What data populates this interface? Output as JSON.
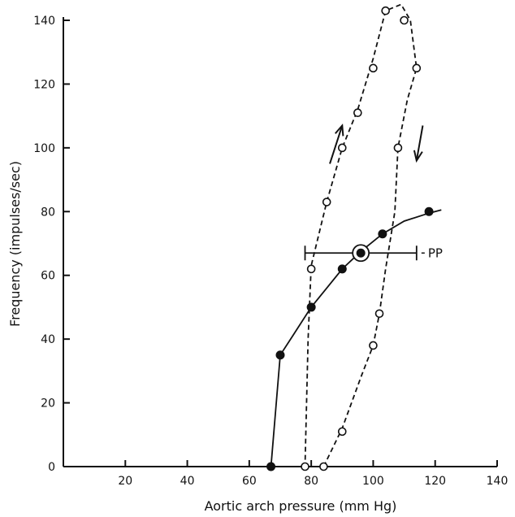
{
  "chart_data": {
    "type": "scatter",
    "title": "",
    "xlabel": "Aortic arch pressure (mm Hg)",
    "ylabel": "Frequency (impulses/sec)",
    "xlim": [
      0,
      140
    ],
    "ylim": [
      0,
      140
    ],
    "x_ticks": [
      20,
      40,
      60,
      80,
      100,
      120,
      140
    ],
    "y_ticks": [
      0,
      20,
      40,
      60,
      80,
      100,
      120,
      140
    ],
    "grid": false,
    "series": [
      {
        "marker": "filled-circle",
        "line": "solid",
        "points": [
          [
            67,
            0
          ],
          [
            70,
            35
          ],
          [
            80,
            50
          ],
          [
            90,
            62
          ],
          [
            103,
            73
          ],
          [
            118,
            80
          ]
        ],
        "line_path": [
          [
            67,
            0
          ],
          [
            70,
            35
          ],
          [
            74,
            41
          ],
          [
            80,
            50
          ],
          [
            85,
            56
          ],
          [
            90,
            62
          ],
          [
            96,
            67.5
          ],
          [
            103,
            73
          ],
          [
            110,
            77
          ],
          [
            118,
            79.5
          ],
          [
            122,
            80.5
          ]
        ]
      },
      {
        "marker": "open-circle",
        "line": "dashed",
        "points": [
          [
            78,
            0
          ],
          [
            84,
            0
          ],
          [
            90,
            11
          ],
          [
            100,
            38
          ],
          [
            102,
            48
          ],
          [
            80,
            62
          ],
          [
            85,
            83
          ],
          [
            90,
            100
          ],
          [
            95,
            111
          ],
          [
            100,
            125
          ],
          [
            104,
            143
          ],
          [
            110,
            140
          ],
          [
            114,
            125
          ],
          [
            108,
            100
          ]
        ],
        "loop_path": [
          [
            84,
            0
          ],
          [
            90,
            12
          ],
          [
            96,
            28
          ],
          [
            100,
            38
          ],
          [
            102,
            48
          ],
          [
            104,
            62
          ],
          [
            107,
            80
          ],
          [
            108,
            100
          ],
          [
            111,
            115
          ],
          [
            114,
            125
          ],
          [
            112,
            140
          ],
          [
            109,
            145
          ],
          [
            104,
            143
          ],
          [
            100,
            128
          ],
          [
            95,
            112
          ],
          [
            90,
            100
          ],
          [
            85,
            83
          ],
          [
            80,
            63
          ],
          [
            79,
            40
          ],
          [
            78,
            0
          ]
        ]
      }
    ],
    "mean_point": [
      96,
      67
    ],
    "pulse_pressure_bar": {
      "x_range": [
        78,
        114
      ],
      "y": 67,
      "label": "PP"
    },
    "arrows": [
      {
        "from": [
          86,
          95
        ],
        "to": [
          90,
          107
        ]
      },
      {
        "from": [
          116,
          107
        ],
        "to": [
          114,
          96
        ]
      }
    ]
  }
}
